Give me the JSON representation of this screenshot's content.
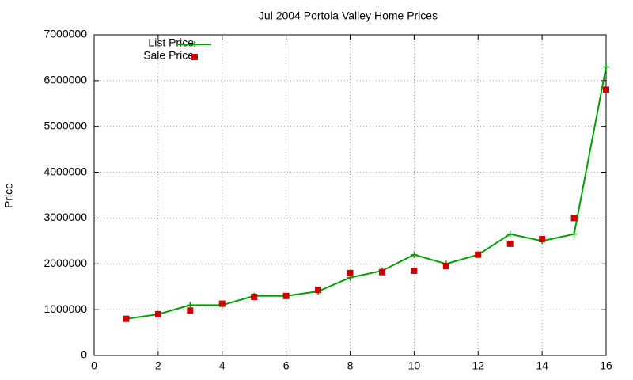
{
  "chart_data": {
    "type": "line",
    "title": "Jul 2004 Portola Valley Home Prices",
    "y_label": "Price",
    "x": [
      1,
      2,
      3,
      4,
      5,
      6,
      7,
      8,
      9,
      10,
      11,
      12,
      13,
      14,
      15,
      16
    ],
    "series": [
      {
        "name": "List Price",
        "color": "#00a000",
        "style": "linespoints",
        "values": [
          800000,
          900000,
          1100000,
          1100000,
          1300000,
          1300000,
          1400000,
          1700000,
          1850000,
          2200000,
          2000000,
          2200000,
          2650000,
          2500000,
          2650000,
          6300000
        ]
      },
      {
        "name": "Sale Price",
        "color": "#cc0000",
        "style": "points",
        "values": [
          800000,
          900000,
          980000,
          1130000,
          1280000,
          1300000,
          1430000,
          1800000,
          1820000,
          1850000,
          1950000,
          2200000,
          2440000,
          2540000,
          3000000,
          5800000
        ]
      }
    ],
    "xlim": [
      0,
      16
    ],
    "xticks": [
      0,
      2,
      4,
      6,
      8,
      10,
      12,
      14,
      16
    ],
    "ylim": [
      0,
      7000000
    ],
    "yticks": [
      0,
      1000000,
      2000000,
      3000000,
      4000000,
      5000000,
      6000000,
      7000000
    ],
    "grid": true,
    "legend": "top-left"
  }
}
